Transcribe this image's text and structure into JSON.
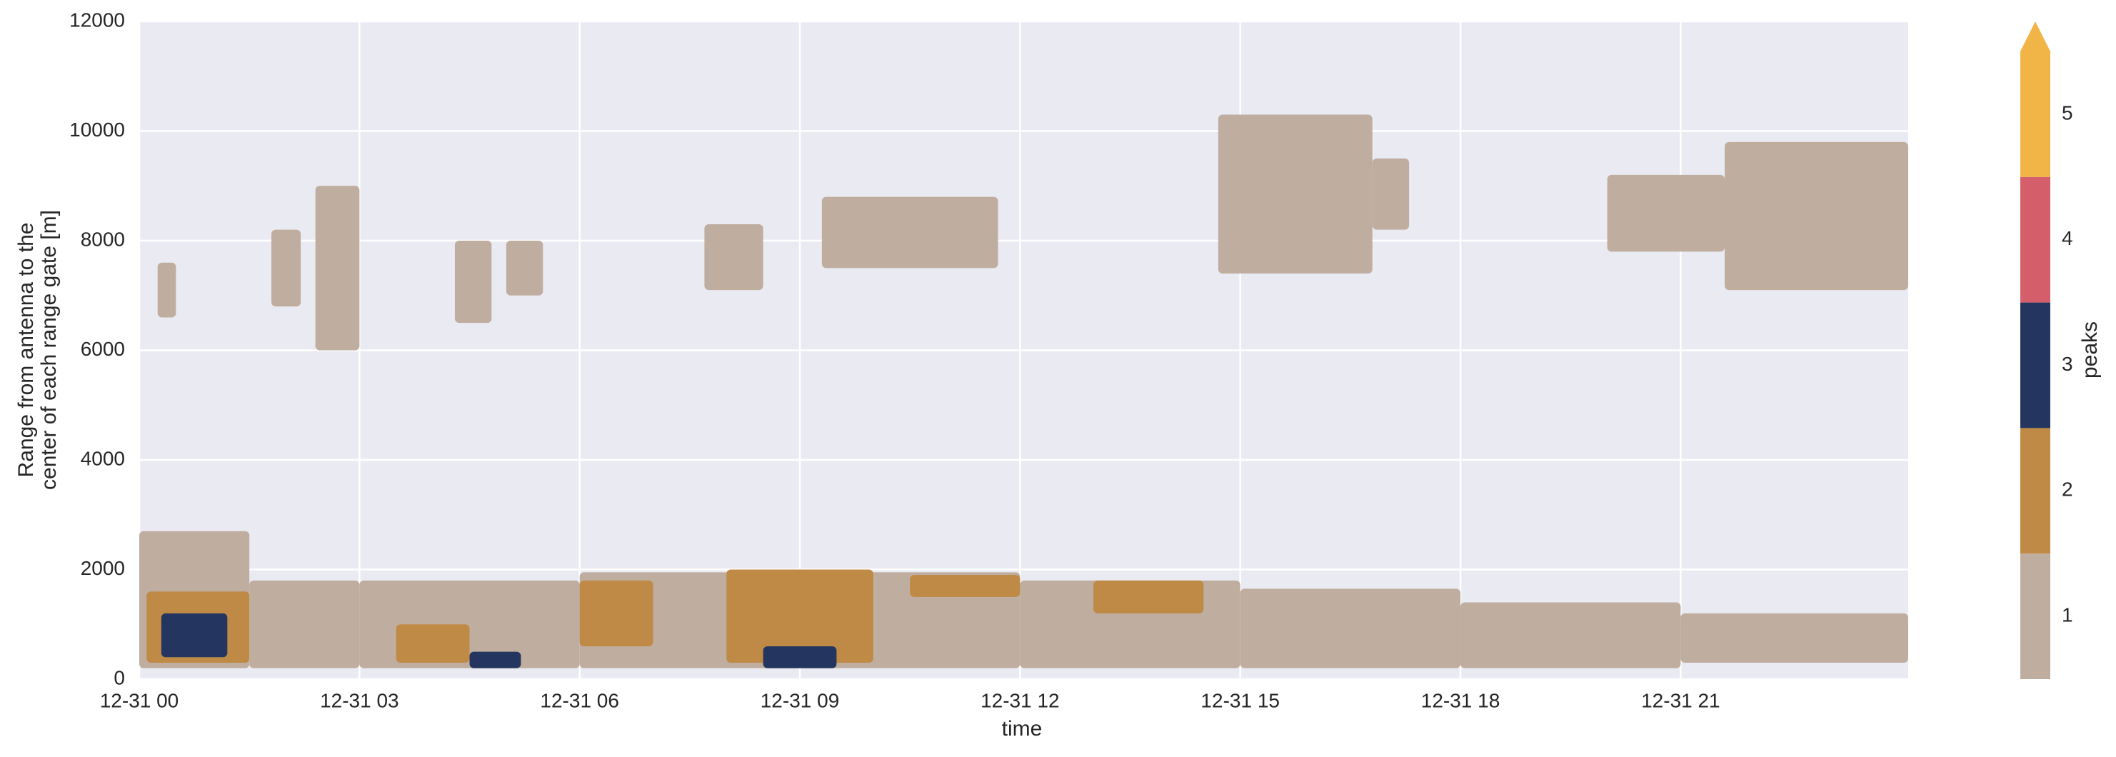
{
  "chart_data": {
    "type": "mesh",
    "xlabel": "time",
    "ylabel": [
      "Range from antenna to the",
      "center of each range gate [m]"
    ],
    "xlim": [
      0,
      24.1
    ],
    "xticks": [
      {
        "value": 0,
        "label": "12-31 00"
      },
      {
        "value": 3,
        "label": "12-31 03"
      },
      {
        "value": 6,
        "label": "12-31 06"
      },
      {
        "value": 9,
        "label": "12-31 09"
      },
      {
        "value": 12,
        "label": "12-31 12"
      },
      {
        "value": 15,
        "label": "12-31 15"
      },
      {
        "value": 18,
        "label": "12-31 18"
      },
      {
        "value": 21,
        "label": "12-31 21"
      }
    ],
    "ylim": [
      0,
      12000
    ],
    "yticks": [
      0,
      2000,
      4000,
      6000,
      8000,
      10000,
      12000
    ],
    "grid": true,
    "colorbar": {
      "label": "peaks",
      "lim": [
        0.5,
        5.5
      ],
      "ticks": [
        1,
        2,
        3,
        4,
        5
      ],
      "colors": [
        "#bfaea0",
        "#bf8a45",
        "#24365f",
        "#d45f6a",
        "#f0b546"
      ],
      "extend": "max"
    },
    "echoes": [
      {
        "peaks": 1,
        "x": [
          0,
          1.5
        ],
        "y": [
          200,
          2700
        ]
      },
      {
        "peaks": 1,
        "x": [
          1.5,
          3
        ],
        "y": [
          200,
          1800
        ]
      },
      {
        "peaks": 1,
        "x": [
          3,
          6
        ],
        "y": [
          200,
          1800
        ]
      },
      {
        "peaks": 1,
        "x": [
          6,
          9
        ],
        "y": [
          200,
          1950
        ]
      },
      {
        "peaks": 1,
        "x": [
          9,
          12
        ],
        "y": [
          200,
          1950
        ]
      },
      {
        "peaks": 1,
        "x": [
          12,
          15
        ],
        "y": [
          200,
          1800
        ]
      },
      {
        "peaks": 1,
        "x": [
          15,
          18
        ],
        "y": [
          200,
          1650
        ]
      },
      {
        "peaks": 1,
        "x": [
          18,
          21
        ],
        "y": [
          200,
          1400
        ]
      },
      {
        "peaks": 1,
        "x": [
          21,
          24.1
        ],
        "y": [
          300,
          1200
        ]
      },
      {
        "peaks": 1,
        "x": [
          0.25,
          0.5
        ],
        "y": [
          6600,
          7600
        ]
      },
      {
        "peaks": 1,
        "x": [
          1.8,
          2.2
        ],
        "y": [
          6800,
          8200
        ]
      },
      {
        "peaks": 1,
        "x": [
          2.4,
          3.0
        ],
        "y": [
          6000,
          9000
        ]
      },
      {
        "peaks": 1,
        "x": [
          4.3,
          4.8
        ],
        "y": [
          6500,
          8000
        ]
      },
      {
        "peaks": 1,
        "x": [
          5.0,
          5.5
        ],
        "y": [
          7000,
          8000
        ]
      },
      {
        "peaks": 1,
        "x": [
          7.7,
          8.5
        ],
        "y": [
          7100,
          8300
        ]
      },
      {
        "peaks": 1,
        "x": [
          9.3,
          11.7
        ],
        "y": [
          7500,
          8800
        ]
      },
      {
        "peaks": 1,
        "x": [
          14.7,
          16.8
        ],
        "y": [
          7400,
          10300
        ]
      },
      {
        "peaks": 1,
        "x": [
          16.8,
          17.3
        ],
        "y": [
          8200,
          9500
        ]
      },
      {
        "peaks": 1,
        "x": [
          20,
          21.6
        ],
        "y": [
          7800,
          9200
        ]
      },
      {
        "peaks": 1,
        "x": [
          21.6,
          24.1
        ],
        "y": [
          7100,
          9800
        ]
      },
      {
        "peaks": 2,
        "x": [
          0.1,
          1.5
        ],
        "y": [
          300,
          1600
        ]
      },
      {
        "peaks": 2,
        "x": [
          3.5,
          4.5
        ],
        "y": [
          300,
          1000
        ]
      },
      {
        "peaks": 2,
        "x": [
          6,
          7
        ],
        "y": [
          600,
          1800
        ]
      },
      {
        "peaks": 2,
        "x": [
          8,
          10
        ],
        "y": [
          300,
          2000
        ]
      },
      {
        "peaks": 2,
        "x": [
          10.5,
          12
        ],
        "y": [
          1500,
          1900
        ]
      },
      {
        "peaks": 2,
        "x": [
          13,
          14.5
        ],
        "y": [
          1200,
          1800
        ]
      },
      {
        "peaks": 3,
        "x": [
          0.3,
          1.2
        ],
        "y": [
          400,
          1200
        ]
      },
      {
        "peaks": 3,
        "x": [
          4.5,
          5.2
        ],
        "y": [
          200,
          500
        ]
      },
      {
        "peaks": 3,
        "x": [
          8.5,
          9.5
        ],
        "y": [
          200,
          600
        ]
      }
    ]
  }
}
